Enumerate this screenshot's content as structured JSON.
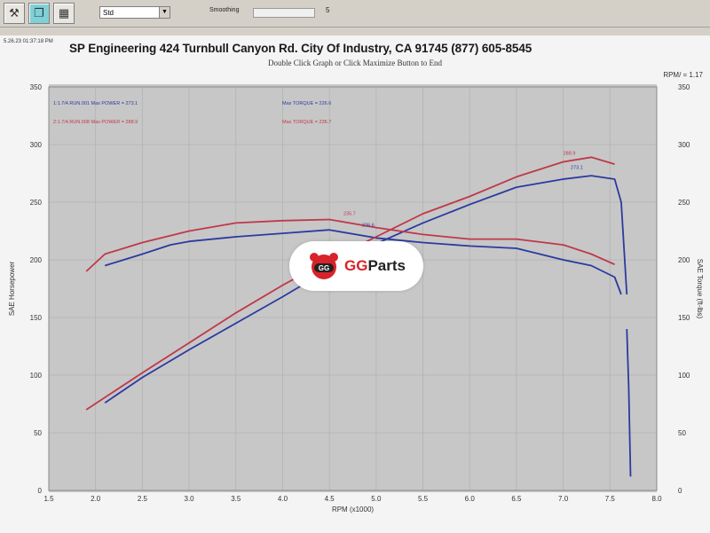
{
  "toolbar": {
    "buttons": [
      "tool-icon",
      "copy-icon",
      "grid-icon"
    ],
    "combo_value": "Std",
    "smoothing_label": "Smoothing",
    "smoothing_value": "5"
  },
  "header": {
    "date": "5.26.23 01:37:18 PM",
    "title": "SP Engineering 424 Turnbull Canyon Rd. City Of Industry, CA 91745 (877) 605-8545",
    "subtitle": "Double Click Graph or Click Maximize Button to End",
    "rpm_ratio": "RPM/ = 1.17"
  },
  "watermark": {
    "brand_red": "GG",
    "brand_black": "Parts"
  },
  "chart_data": {
    "type": "line",
    "xlabel": "RPM (x1000)",
    "ylabel_left": "SAE Horsepower",
    "ylabel_right": "SAE Torque (ft-lbs)",
    "xlim": [
      1.5,
      8.0
    ],
    "ylim": [
      0,
      350
    ],
    "x_ticks": [
      "1.5",
      "2.0",
      "2.5",
      "3.0",
      "3.5",
      "4.0",
      "4.5",
      "5.0",
      "5.5",
      "6.0",
      "6.5",
      "7.0",
      "7.5",
      "8.0"
    ],
    "y_ticks": [
      "0",
      "50",
      "100",
      "150",
      "200",
      "250",
      "300",
      "350"
    ],
    "legend": [
      {
        "text": "1:1.7/4.RUN.001   Max POWER = 273.1",
        "color": "#2b3aa0"
      },
      {
        "text": "Max TORQUE = 226.6",
        "color": "#2b3aa0"
      },
      {
        "text": "2:1.7/4.RUN.008   Max POWER = 288.9",
        "color": "#c0384a"
      },
      {
        "text": "Max TORQUE = 235.7",
        "color": "#c0384a"
      }
    ],
    "annotations": [
      "288.9",
      "273.1",
      "235.7",
      "226.6"
    ],
    "series": [
      {
        "name": "1:1.7/4.RUN.001 HP",
        "color": "#2b3aa0",
        "x": [
          2.1,
          2.5,
          3.0,
          3.5,
          4.0,
          4.5,
          5.0,
          5.5,
          6.0,
          6.5,
          7.0,
          7.3,
          7.55,
          7.62,
          7.68
        ],
        "y": [
          76,
          98,
          122,
          145,
          168,
          192,
          214,
          232,
          248,
          263,
          270,
          273,
          270,
          250,
          170
        ]
      },
      {
        "name": "1:1.7/4.RUN.001 TQ",
        "color": "#2b3aa0",
        "x": [
          2.1,
          2.3,
          2.5,
          2.8,
          3.0,
          3.5,
          4.0,
          4.5,
          5.0,
          5.5,
          6.0,
          6.5,
          7.0,
          7.3,
          7.55,
          7.62
        ],
        "y": [
          195,
          200,
          205,
          213,
          216,
          220,
          223,
          226,
          219,
          215,
          212,
          210,
          200,
          195,
          185,
          170
        ]
      },
      {
        "name": "1:1.7/4.RUN.001 tail",
        "color": "#2b3aa0",
        "x": [
          7.68,
          7.7,
          7.72
        ],
        "y": [
          140,
          90,
          12
        ]
      },
      {
        "name": "2:1.7/4.RUN.008 HP",
        "color": "#c0384a",
        "x": [
          1.9,
          2.5,
          3.0,
          3.5,
          4.0,
          4.5,
          5.0,
          5.5,
          6.0,
          6.5,
          7.0,
          7.3,
          7.55
        ],
        "y": [
          70,
          102,
          128,
          154,
          178,
          200,
          220,
          240,
          255,
          272,
          285,
          289,
          283
        ]
      },
      {
        "name": "2:1.7/4.RUN.008 TQ",
        "color": "#c0384a",
        "x": [
          1.9,
          2.1,
          2.5,
          3.0,
          3.5,
          4.0,
          4.5,
          5.0,
          5.5,
          6.0,
          6.5,
          7.0,
          7.3,
          7.55
        ],
        "y": [
          190,
          205,
          215,
          225,
          232,
          234,
          235,
          228,
          222,
          218,
          218,
          213,
          205,
          196
        ]
      }
    ]
  }
}
